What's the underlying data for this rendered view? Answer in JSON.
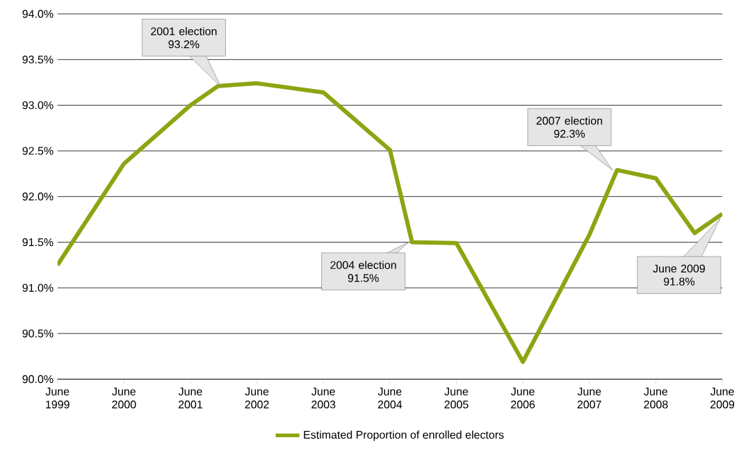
{
  "chart_data": {
    "type": "line",
    "x": [
      "1999-06",
      "2000-06",
      "2001-06",
      "2001-11",
      "2002-06",
      "2003-06",
      "2004-06",
      "2004-10",
      "2005-06",
      "2006-06",
      "2007-06",
      "2007-11",
      "2008-06",
      "2009-01",
      "2009-06"
    ],
    "series": [
      {
        "name": "Estimated Proportion of enrolled electors",
        "color": "#8ca512",
        "values": [
          91.25,
          92.36,
          93.0,
          93.21,
          93.24,
          93.14,
          92.51,
          91.5,
          91.49,
          90.19,
          91.58,
          92.29,
          92.2,
          91.6,
          91.81
        ]
      }
    ],
    "xlim": [
      "1999-06",
      "2009-06"
    ],
    "xticks": [
      {
        "value": "1999-06",
        "label": "June 1999"
      },
      {
        "value": "2000-06",
        "label": "June 2000"
      },
      {
        "value": "2001-06",
        "label": "June 2001"
      },
      {
        "value": "2002-06",
        "label": "June 2002"
      },
      {
        "value": "2003-06",
        "label": "June 2003"
      },
      {
        "value": "2004-06",
        "label": "June 2004"
      },
      {
        "value": "2005-06",
        "label": "June 2005"
      },
      {
        "value": "2006-06",
        "label": "June 2006"
      },
      {
        "value": "2007-06",
        "label": "June 2007"
      },
      {
        "value": "2008-06",
        "label": "June 2008"
      },
      {
        "value": "2009-06",
        "label": "June 2009"
      }
    ],
    "ylim": [
      90,
      94
    ],
    "yticks": [
      {
        "value": 90,
        "label": "90.0%"
      },
      {
        "value": 90.5,
        "label": "90.5%"
      },
      {
        "value": 91,
        "label": "91.0%"
      },
      {
        "value": 91.5,
        "label": "91.5%"
      },
      {
        "value": 92,
        "label": "92.0%"
      },
      {
        "value": 92.5,
        "label": "92.5%"
      },
      {
        "value": 93,
        "label": "93.0%"
      },
      {
        "value": 93.5,
        "label": "93.5%"
      },
      {
        "value": 94,
        "label": "94.0%"
      }
    ],
    "grid": "y",
    "legend": "bottom",
    "marker": "none",
    "line_style": "solid",
    "annotations": [
      "2001 election 93.2%",
      "2004 election 91.5%",
      "2007 election 92.3%",
      "June 2009 91.8%"
    ]
  }
}
